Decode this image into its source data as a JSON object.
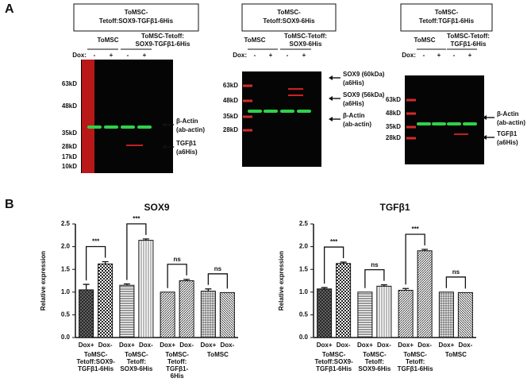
{
  "panel_a": {
    "label": "A",
    "blots": [
      {
        "header": [
          "ToMSC-",
          "Tetoff:SOX9-TGFβ1-6His"
        ],
        "groups": [
          [
            "ToMSC"
          ],
          [
            "ToMSC-Tetoff:",
            "SOX9-TGFβ1-6His"
          ]
        ],
        "dox_label": "Dox:",
        "dox": [
          "-",
          "+",
          "-",
          "+"
        ],
        "markers": [
          "63kD",
          "48kD",
          "35kD",
          "28kD",
          "17kD",
          "10kD"
        ],
        "annotations": [
          {
            "lines": [
              "β-Actin",
              "(ab-actin)"
            ],
            "colors": [
              "#111111",
              "#1fa83a"
            ]
          },
          {
            "lines": [
              "TGFβ1",
              "(a6His)"
            ],
            "colors": [
              "#111111",
              "#e02020"
            ]
          }
        ]
      },
      {
        "header": [
          "ToMSC-",
          "Tetoff:SOX9-6His"
        ],
        "groups": [
          [
            "ToMSC"
          ],
          [
            "ToMSC-Tetoff:",
            "SOX9-6His"
          ]
        ],
        "dox_label": "Dox:",
        "dox": [
          "-",
          "+",
          "-",
          "+"
        ],
        "markers": [
          "63kD",
          "48kD",
          "35kD",
          "28kD"
        ],
        "annotations": [
          {
            "lines": [
              "SOX9 (60kDa)",
              "(a6His)"
            ],
            "colors": [
              "#111111",
              "#e02020"
            ]
          },
          {
            "lines": [
              "SOX9 (56kDa)",
              "(a6His)"
            ],
            "colors": [
              "#111111",
              "#e02020"
            ]
          },
          {
            "lines": [
              "β-Actin",
              "(ab-actin)"
            ],
            "colors": [
              "#111111",
              "#1fa83a"
            ]
          }
        ]
      },
      {
        "header": [
          "ToMSC-",
          "Tetoff:TGFβ1-6His"
        ],
        "groups": [
          [
            "ToMSC"
          ],
          [
            "ToMSC-Tetoff:",
            "TGFβ1-6His"
          ]
        ],
        "dox_label": "Dox:",
        "dox": [
          "-",
          "+",
          "-",
          "+"
        ],
        "markers": [
          "63kD",
          "48kD",
          "35kD",
          "28kD"
        ],
        "annotations": [
          {
            "lines": [
              "β-Actin",
              "(ab-actin)"
            ],
            "colors": [
              "#111111",
              "#1fa83a"
            ]
          },
          {
            "lines": [
              "TGFβ1",
              "(a6His)"
            ],
            "colors": [
              "#111111",
              "#e02020"
            ]
          }
        ]
      }
    ]
  },
  "panel_b": {
    "label": "B"
  },
  "chart_data": [
    {
      "type": "bar",
      "title": "SOX9",
      "ylabel": "Relative expression",
      "categories": [
        "Dox+",
        "Dox-",
        "Dox+",
        "Dox-",
        "Dox+",
        "Dox-",
        "Dox+",
        "Dox-"
      ],
      "values": [
        1.05,
        1.62,
        1.15,
        2.14,
        1.0,
        1.25,
        1.02,
        0.99
      ],
      "errors": [
        0.12,
        0.05,
        0.03,
        0.03,
        0,
        0.03,
        0.05,
        0
      ],
      "patterns": [
        "crosshatch",
        "checker",
        "hlines",
        "vlines",
        "diag",
        "diag",
        "grid",
        "diag2"
      ],
      "group_labels": [
        [
          "ToMSC-",
          "Tetoff:SOX9-",
          "TGFβ1-6His"
        ],
        [
          "ToMSC-",
          "Tetoff:",
          "SOX9-6His"
        ],
        [
          "ToMSC-",
          "Tetoff:",
          "TGFβ1-",
          "6His"
        ],
        [
          "ToMSC"
        ]
      ],
      "significance": [
        "***",
        "***",
        "ns",
        "ns"
      ],
      "color": "#111111",
      "ylim": [
        0,
        2.5
      ],
      "yticks": [
        {
          "value": 0,
          "label": "0.0"
        },
        0.5,
        {
          "value": 1,
          "label": "1.0"
        },
        1.5,
        {
          "value": 2,
          "label": "2.0"
        },
        2.5
      ]
    },
    {
      "type": "bar",
      "title": "TGFβ1",
      "ylabel": "Relative expression",
      "categories": [
        "Dox+",
        "Dox-",
        "Dox+",
        "Dox-",
        "Dox+",
        "Dox-",
        "Dox+",
        "Dox-"
      ],
      "values": [
        1.07,
        1.63,
        1.0,
        1.13,
        1.04,
        1.91,
        1.0,
        0.99
      ],
      "errors": [
        0.03,
        0.03,
        0,
        0.03,
        0.04,
        0.03,
        0,
        0
      ],
      "patterns": [
        "crosshatch",
        "checker",
        "hlines",
        "vlines",
        "diag",
        "diag",
        "grid",
        "diag2"
      ],
      "group_labels": [
        [
          "ToMSC-",
          "Tetoff:SOX9-",
          "TGFβ1-6His"
        ],
        [
          "ToMSC-",
          "Tetoff:",
          "SOX9-6His"
        ],
        [
          "ToMSC-",
          "Tetoff:",
          "TGFβ1-6His"
        ],
        [
          "ToMSC"
        ]
      ],
      "significance": [
        "***",
        "ns",
        "***",
        "ns"
      ],
      "color": "#111111",
      "ylim": [
        0,
        2.5
      ],
      "yticks": [
        {
          "value": 0,
          "label": "0.0"
        },
        0.5,
        {
          "value": 1,
          "label": "1.0"
        },
        1.5,
        {
          "value": 2,
          "label": "2.0"
        },
        2.5
      ]
    }
  ]
}
